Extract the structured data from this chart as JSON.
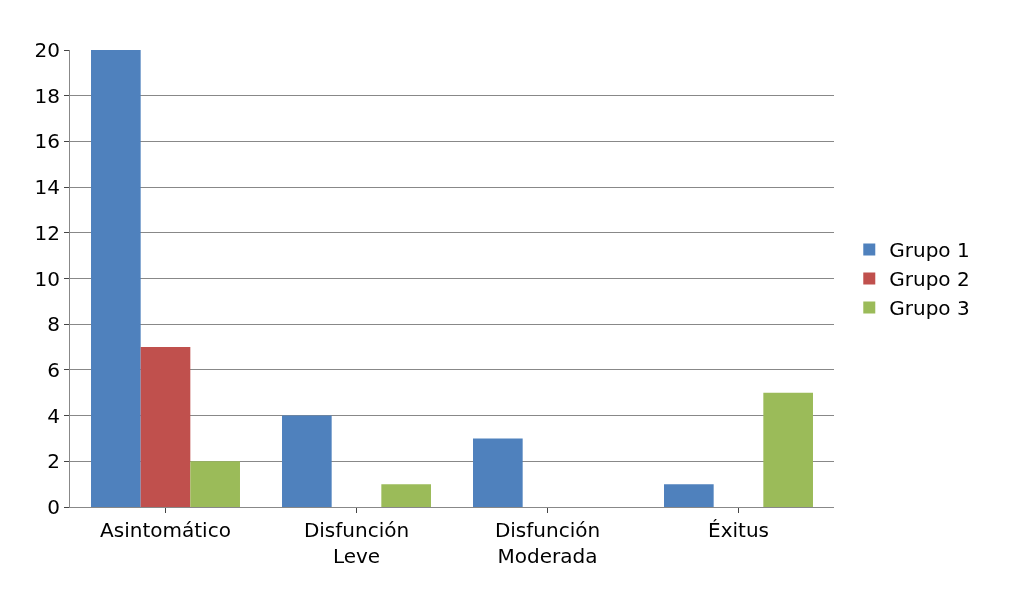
{
  "chart_data": {
    "type": "bar",
    "categories": [
      "Asintomático",
      "Disfunción\nLeve",
      "Disfunción\nModerada",
      "Éxitus"
    ],
    "series": [
      {
        "name": "Grupo 1",
        "color": "#4f81bd",
        "values": [
          20,
          4,
          3,
          1
        ]
      },
      {
        "name": "Grupo 2",
        "color": "#c0504d",
        "values": [
          7,
          0,
          0,
          0
        ]
      },
      {
        "name": "Grupo 3",
        "color": "#9bbb59",
        "values": [
          2,
          1,
          0,
          5
        ]
      }
    ],
    "ylim": [
      0,
      20
    ],
    "yticks": [
      0,
      2,
      4,
      6,
      8,
      10,
      12,
      14,
      16,
      18,
      20
    ],
    "grid": "y",
    "legend": "right"
  }
}
